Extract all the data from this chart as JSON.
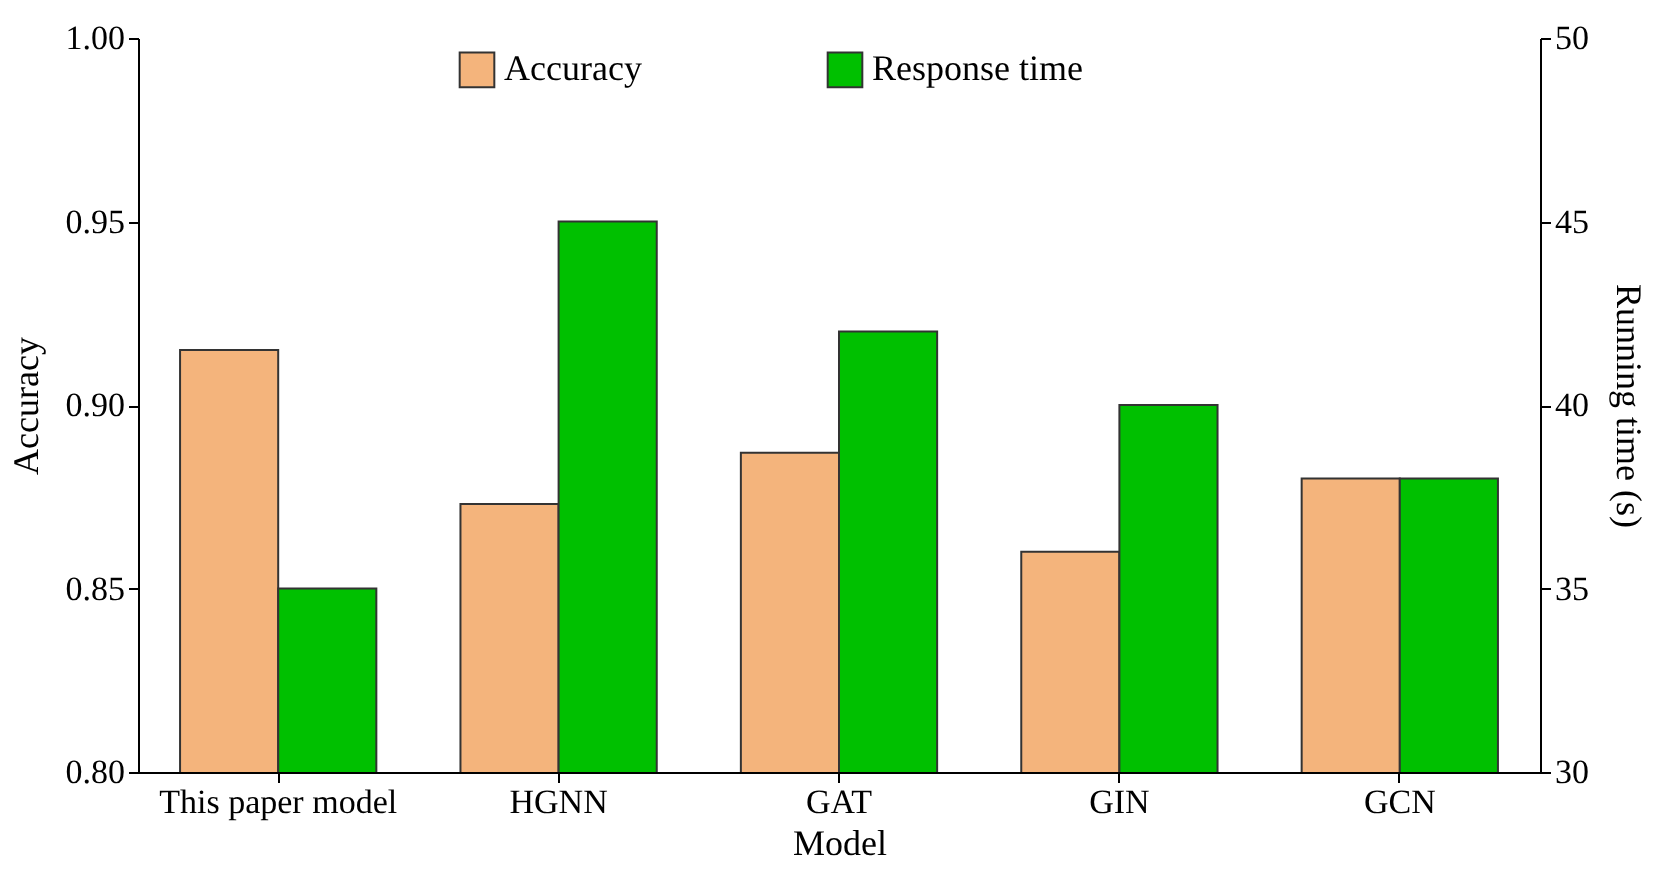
{
  "chart_data": {
    "type": "bar",
    "xlabel": "Model",
    "ylabel": "Accuracy",
    "y2label": "Running time (s)",
    "categories": [
      "This paper model",
      "HGNN",
      "GAT",
      "GIN",
      "GCN"
    ],
    "series": [
      {
        "name": "Accuracy",
        "color": "#f4b47c",
        "values": [
          0.915,
          0.873,
          0.887,
          0.86,
          0.88
        ]
      },
      {
        "name": "Response time",
        "color": "#00c000",
        "axis": "y2",
        "values": [
          35,
          45,
          42,
          40,
          38
        ]
      }
    ],
    "ylim": [
      0.8,
      1.0
    ],
    "yticks": [
      {
        "value": 0.8,
        "label": "0.80"
      },
      {
        "value": 0.85,
        "label": "0.85"
      },
      {
        "value": 0.9,
        "label": "0.90"
      },
      {
        "value": 0.95,
        "label": "0.95"
      },
      {
        "value": 1.0,
        "label": "1.00"
      }
    ],
    "y2lim": [
      30,
      50
    ],
    "y2ticks": [
      30,
      35,
      40,
      45,
      50
    ],
    "grid": false,
    "legend": "top"
  }
}
